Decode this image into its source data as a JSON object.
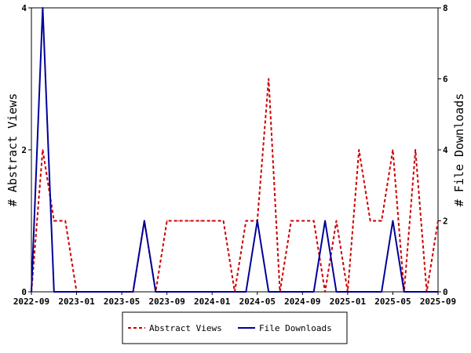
{
  "chart_data": {
    "type": "line",
    "title": "",
    "x_tick_labels": [
      "2022-09",
      "2023-01",
      "2023-05",
      "2023-09",
      "2024-01",
      "2024-05",
      "2024-09",
      "2025-01",
      "2025-05",
      "2025-09"
    ],
    "x_range": [
      "2022-09",
      "2025-09"
    ],
    "y_left": {
      "label": "# Abstract Views",
      "ylim": [
        0,
        4
      ],
      "ticks": [
        0,
        2,
        4
      ]
    },
    "y_right": {
      "label": "# File Downloads",
      "ylim": [
        0,
        8
      ],
      "ticks": [
        0,
        2,
        4,
        6,
        8
      ]
    },
    "grid": false,
    "legend_position": "bottom-center",
    "x": [
      "2022-09",
      "2022-10",
      "2022-11",
      "2022-12",
      "2023-01",
      "2023-02",
      "2023-03",
      "2023-04",
      "2023-05",
      "2023-06",
      "2023-07",
      "2023-08",
      "2023-09",
      "2023-10",
      "2023-11",
      "2023-12",
      "2024-01",
      "2024-02",
      "2024-03",
      "2024-04",
      "2024-05",
      "2024-06",
      "2024-07",
      "2024-08",
      "2024-09",
      "2024-10",
      "2024-11",
      "2024-12",
      "2025-01",
      "2025-02",
      "2025-03",
      "2025-04",
      "2025-05",
      "2025-06",
      "2025-07",
      "2025-08",
      "2025-09"
    ],
    "series": [
      {
        "name": "Abstract Views",
        "axis": "left",
        "color": "#cc0000",
        "dash": "dashed",
        "values": [
          0,
          2,
          1,
          1,
          0,
          0,
          0,
          0,
          0,
          0,
          1,
          0,
          1,
          1,
          1,
          1,
          1,
          1,
          0,
          1,
          1,
          3,
          0,
          1,
          1,
          1,
          0,
          1,
          0,
          2,
          1,
          1,
          2,
          0,
          2,
          0,
          1
        ]
      },
      {
        "name": "File Downloads",
        "axis": "right",
        "color": "#000099",
        "dash": "solid",
        "values": [
          0,
          8,
          0,
          0,
          0,
          0,
          0,
          0,
          0,
          0,
          2,
          0,
          0,
          0,
          0,
          0,
          0,
          0,
          0,
          0,
          2,
          0,
          0,
          0,
          0,
          0,
          2,
          0,
          0,
          0,
          0,
          0,
          2,
          0,
          0,
          0,
          0
        ]
      }
    ]
  }
}
